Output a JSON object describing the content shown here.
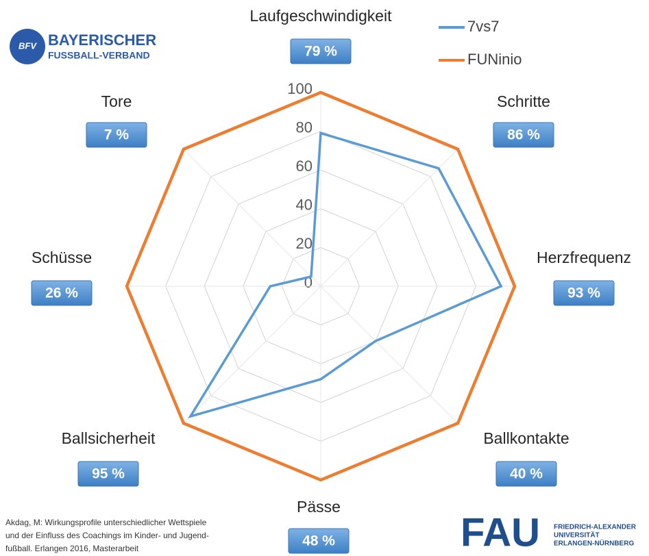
{
  "chart_data": {
    "type": "radar",
    "categories": [
      "Laufgeschwindigkeit",
      "Schritte",
      "Herzfrequenz",
      "Ballkontakte",
      "Pässe",
      "Ballsicherheit",
      "Schüsse",
      "Tore"
    ],
    "series": [
      {
        "name": "7vs7",
        "color": "#5b9bd5",
        "values": [
          79,
          86,
          93,
          40,
          48,
          95,
          26,
          7
        ],
        "value_labels": [
          "79 %",
          "86 %",
          "93 %",
          "40 %",
          "48 %",
          "95 %",
          "26 %",
          "7 %"
        ]
      },
      {
        "name": "FUNinio",
        "color": "#ed7d31",
        "values": [
          100,
          100,
          100,
          100,
          100,
          100,
          100,
          100
        ]
      }
    ],
    "rlim": [
      0,
      100
    ],
    "rticks": [
      0,
      20,
      40,
      60,
      80,
      100
    ],
    "grid": true,
    "legend": "top-right"
  },
  "logos": {
    "bfv_badge": "BFV",
    "bfv_line1": "BAYERISCHER",
    "bfv_line2": "FUSSBALL-VERBAND",
    "fau": "FAU",
    "fau_line1": "FRIEDRICH-ALEXANDER",
    "fau_line2": "UNIVERSITÄT",
    "fau_line3": "ERLANGEN-NÜRNBERG"
  },
  "source": [
    "Akdag, M: Wirkungsprofile unterschiedlicher Wettspiele",
    "und der Einfluss des Coachings im Kinder- und Jugend-",
    "fußball. Erlangen 2016, Masterarbeit"
  ]
}
